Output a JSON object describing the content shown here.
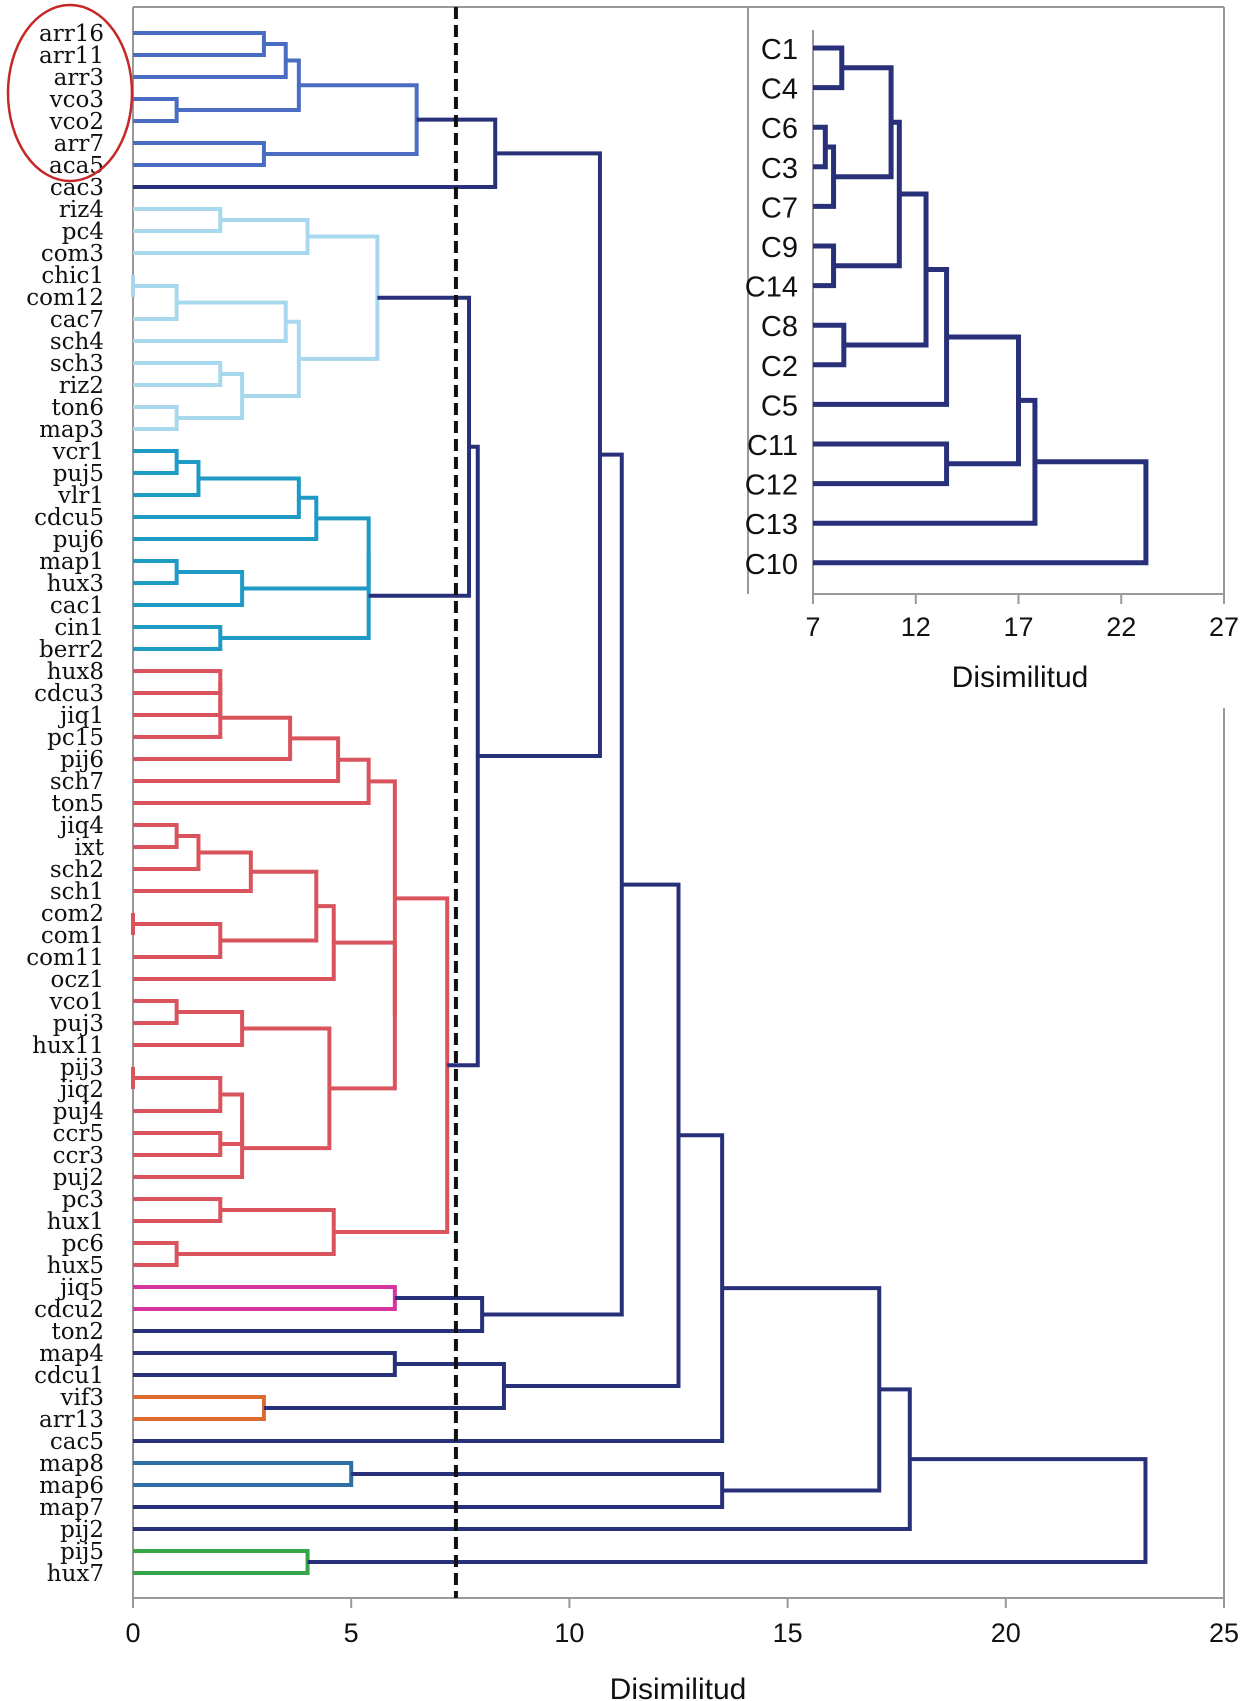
{
  "chart_data": [
    {
      "type": "dendrogram",
      "xlabel": "Disimilitud",
      "xlim": [
        0,
        25
      ],
      "xticks": [
        "0",
        "5",
        "10",
        "15",
        "20",
        "25"
      ],
      "cut_threshold": 7.4,
      "leaves": [
        "arr16",
        "arr11",
        "arr3",
        "vco3",
        "vco2",
        "arr7",
        "aca5",
        "cac3",
        "riz4",
        "pc4",
        "com3",
        "chic1",
        "com12",
        "cac7",
        "sch4",
        "sch3",
        "riz2",
        "ton6",
        "map3",
        "vcr1",
        "puj5",
        "vlr1",
        "cdcu5",
        "puj6",
        "map1",
        "hux3",
        "cac1",
        "cin1",
        "berr2",
        "hux8",
        "cdcu3",
        "jiq1",
        "pc15",
        "pij6",
        "sch7",
        "ton5",
        "jiq4",
        "ixt",
        "sch2",
        "sch1",
        "com2",
        "com1",
        "com11",
        "ocz1",
        "vco1",
        "puj3",
        "hux11",
        "pij3",
        "jiq2",
        "puj4",
        "ccr5",
        "ccr3",
        "puj2",
        "pc3",
        "hux1",
        "pc6",
        "hux5",
        "jiq5",
        "cdcu2",
        "ton2",
        "map4",
        "cdcu1",
        "vif3",
        "arr13",
        "cac5",
        "map8",
        "map6",
        "map7",
        "pij2",
        "pij5",
        "hux7"
      ],
      "highlighted_leaves": [
        "arr16",
        "arr11",
        "arr3",
        "vco3",
        "vco2",
        "arr7",
        "aca5"
      ],
      "clusters": [
        {
          "members": [
            "arr16",
            "arr11",
            "arr3",
            "vco3",
            "vco2",
            "arr7",
            "aca5"
          ],
          "color": "#4a6cc2"
        },
        {
          "members": [
            "riz4",
            "pc4",
            "com3",
            "chic1",
            "com12",
            "cac7",
            "sch4",
            "sch3",
            "riz2",
            "ton6",
            "map3"
          ],
          "color": "#a8d8ee"
        },
        {
          "members": [
            "vcr1",
            "puj5",
            "vlr1",
            "cdcu5",
            "puj6",
            "map1",
            "hux3",
            "cac1",
            "cin1",
            "berr2"
          ],
          "color": "#1e9ac4"
        },
        {
          "members": [
            "hux8",
            "cdcu3",
            "jiq1",
            "pc15",
            "pij6",
            "sch7",
            "ton5",
            "jiq4",
            "ixt",
            "sch2",
            "sch1",
            "com2",
            "com1",
            "com11",
            "ocz1",
            "vco1",
            "puj3",
            "hux11",
            "pij3",
            "jiq2",
            "puj4",
            "ccr5",
            "ccr3",
            "puj2",
            "pc3",
            "hux1",
            "pc6",
            "hux5"
          ],
          "color": "#d9545c"
        },
        {
          "members": [
            "jiq5",
            "cdcu2"
          ],
          "color": "#d6349e"
        },
        {
          "members": [
            "vif3",
            "arr13"
          ],
          "color": "#de6b2e"
        },
        {
          "members": [
            "map8",
            "map6"
          ],
          "color": "#2f6ea6"
        },
        {
          "members": [
            "pij5",
            "hux7"
          ],
          "color": "#35a548"
        }
      ],
      "link_color": "#28307a",
      "merges": [
        {
          "a": "arr16",
          "b": "arr11",
          "h": 3.0
        },
        {
          "a": "m1",
          "b": "arr3",
          "h": 3.5
        },
        {
          "a": "vco3",
          "b": "vco2",
          "h": 1.0
        },
        {
          "a": "m2",
          "b": "m3",
          "h": 3.8
        },
        {
          "a": "arr7",
          "b": "aca5",
          "h": 3.0
        },
        {
          "a": "m4",
          "b": "m5",
          "h": 6.5
        },
        {
          "a": "m6",
          "b": "cac3",
          "h": 8.3
        },
        {
          "a": "riz4",
          "b": "pc4",
          "h": 2.0
        },
        {
          "a": "m8",
          "b": "com3",
          "h": 4.0
        },
        {
          "a": "chic1",
          "b": "com12",
          "h": 0.0
        },
        {
          "a": "m10",
          "b": "cac7",
          "h": 1.0
        },
        {
          "a": "m11",
          "b": "sch4",
          "h": 3.5
        },
        {
          "a": "sch3",
          "b": "riz2",
          "h": 2.0
        },
        {
          "a": "ton6",
          "b": "map3",
          "h": 1.0
        },
        {
          "a": "m13",
          "b": "m14",
          "h": 2.5
        },
        {
          "a": "m12",
          "b": "m15",
          "h": 3.8
        },
        {
          "a": "m9",
          "b": "m16",
          "h": 5.6
        },
        {
          "a": "vcr1",
          "b": "puj5",
          "h": 1.0
        },
        {
          "a": "m18",
          "b": "vlr1",
          "h": 1.5
        },
        {
          "a": "m19",
          "b": "cdcu5",
          "h": 3.8
        },
        {
          "a": "m20",
          "b": "puj6",
          "h": 4.2
        },
        {
          "a": "map1",
          "b": "hux3",
          "h": 1.0
        },
        {
          "a": "m22",
          "b": "cac1",
          "h": 2.5
        },
        {
          "a": "cin1",
          "b": "berr2",
          "h": 2.0
        },
        {
          "a": "m21",
          "b": "m23",
          "h": 5.4
        },
        {
          "a": "m25",
          "b": "m24",
          "h": 5.4
        },
        {
          "a": "m17",
          "b": "m26",
          "h": 7.7
        },
        {
          "a": "hux8",
          "b": "cdcu3",
          "h": 2.0
        },
        {
          "a": "m28",
          "b": "jiq1",
          "h": 2.0
        },
        {
          "a": "m29",
          "b": "pc15",
          "h": 2.0
        },
        {
          "a": "m30",
          "b": "pij6",
          "h": 3.6
        },
        {
          "a": "m31",
          "b": "sch7",
          "h": 4.7
        },
        {
          "a": "m32",
          "b": "ton5",
          "h": 5.4
        },
        {
          "a": "jiq4",
          "b": "ixt",
          "h": 1.0
        },
        {
          "a": "m34",
          "b": "sch2",
          "h": 1.5
        },
        {
          "a": "m35",
          "b": "sch1",
          "h": 2.7
        },
        {
          "a": "com2",
          "b": "com1",
          "h": 0.0
        },
        {
          "a": "m37",
          "b": "com11",
          "h": 2.0
        },
        {
          "a": "m36",
          "b": "m38",
          "h": 4.2
        },
        {
          "a": "m39",
          "b": "ocz1",
          "h": 4.6
        },
        {
          "a": "vco1",
          "b": "puj3",
          "h": 1.0
        },
        {
          "a": "m41",
          "b": "hux11",
          "h": 2.5
        },
        {
          "a": "pij3",
          "b": "jiq2",
          "h": 0.0
        },
        {
          "a": "m43",
          "b": "puj4",
          "h": 2.0
        },
        {
          "a": "ccr5",
          "b": "ccr3",
          "h": 2.0
        },
        {
          "a": "m44",
          "b": "m45",
          "h": 2.5
        },
        {
          "a": "m46",
          "b": "puj2",
          "h": 2.5
        },
        {
          "a": "m42",
          "b": "m47",
          "h": 4.5
        },
        {
          "a": "m40",
          "b": "m48",
          "h": 6.0
        },
        {
          "a": "m33",
          "b": "m49",
          "h": 6.0
        },
        {
          "a": "pc3",
          "b": "hux1",
          "h": 2.0
        },
        {
          "a": "pc6",
          "b": "hux5",
          "h": 1.0
        },
        {
          "a": "m51",
          "b": "m52",
          "h": 4.6
        },
        {
          "a": "m50",
          "b": "m53",
          "h": 7.2
        },
        {
          "a": "m27",
          "b": "m54",
          "h": 7.9
        },
        {
          "a": "m7",
          "b": "m55",
          "h": 10.7
        },
        {
          "a": "jiq5",
          "b": "cdcu2",
          "h": 6.0
        },
        {
          "a": "m57",
          "b": "ton2",
          "h": 8.0
        },
        {
          "a": "m56",
          "b": "m58",
          "h": 11.2
        },
        {
          "a": "map4",
          "b": "cdcu1",
          "h": 6.0
        },
        {
          "a": "vif3",
          "b": "arr13",
          "h": 3.0
        },
        {
          "a": "m60",
          "b": "m61",
          "h": 8.5
        },
        {
          "a": "m59",
          "b": "m62",
          "h": 12.5
        },
        {
          "a": "m63",
          "b": "cac5",
          "h": 13.5
        },
        {
          "a": "map8",
          "b": "map6",
          "h": 5.0
        },
        {
          "a": "m65",
          "b": "map7",
          "h": 13.5
        },
        {
          "a": "m64",
          "b": "m66",
          "h": 17.1
        },
        {
          "a": "m67",
          "b": "pij2",
          "h": 17.8
        },
        {
          "a": "pij5",
          "b": "hux7",
          "h": 4.0
        },
        {
          "a": "m68",
          "b": "m69",
          "h": 23.2
        }
      ]
    },
    {
      "type": "dendrogram",
      "xlabel": "Disimilitud",
      "xlim": [
        7,
        27
      ],
      "xticks": [
        "7",
        "12",
        "17",
        "22",
        "27"
      ],
      "leaves": [
        "C1",
        "C4",
        "C6",
        "C3",
        "C7",
        "C9",
        "C14",
        "C8",
        "C2",
        "C5",
        "C11",
        "C12",
        "C13",
        "C10"
      ],
      "link_color": "#28307a",
      "merges": [
        {
          "a": "C1",
          "b": "C4",
          "h": 8.4
        },
        {
          "a": "C6",
          "b": "C3",
          "h": 7.6
        },
        {
          "a": "m2",
          "b": "C7",
          "h": 8.0
        },
        {
          "a": "m1",
          "b": "m3",
          "h": 10.8
        },
        {
          "a": "C9",
          "b": "C14",
          "h": 8.0
        },
        {
          "a": "m4",
          "b": "m5",
          "h": 11.2
        },
        {
          "a": "C8",
          "b": "C2",
          "h": 8.5
        },
        {
          "a": "m6",
          "b": "m7",
          "h": 12.5
        },
        {
          "a": "m8",
          "b": "C5",
          "h": 13.5
        },
        {
          "a": "C11",
          "b": "C12",
          "h": 13.5
        },
        {
          "a": "m9",
          "b": "m10",
          "h": 17.0
        },
        {
          "a": "m11",
          "b": "C13",
          "h": 17.8
        },
        {
          "a": "m12",
          "b": "C10",
          "h": 23.2
        }
      ]
    }
  ]
}
